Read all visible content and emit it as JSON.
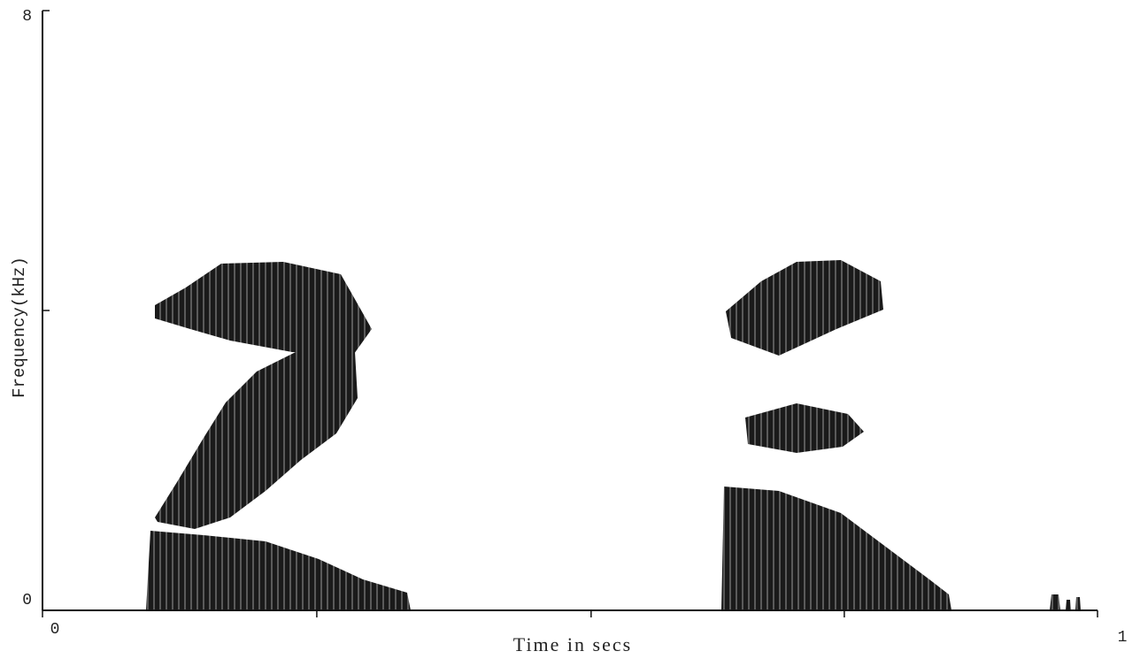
{
  "chart_data": {
    "type": "spectrogram",
    "xlabel": "Time in secs",
    "ylabel": "Frequency(kHz)",
    "xlim": [
      0,
      1
    ],
    "ylim": [
      0,
      8
    ],
    "xticks": [
      0,
      {
        "value": 0.26,
        "label": null
      },
      {
        "value": 0.52,
        "label": null
      },
      {
        "value": 0.76,
        "label": null
      },
      1
    ],
    "yticks": [
      0,
      {
        "value": 4,
        "label": null
      },
      8
    ]
  }
}
